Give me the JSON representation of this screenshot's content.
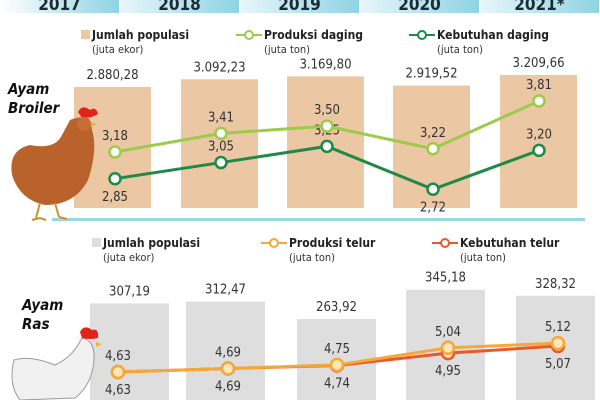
{
  "chart_data": [
    {
      "type": "bar+line",
      "section_label": "Ayam Broiler",
      "categories": [
        "2017",
        "2018",
        "2019",
        "2020",
        "2021*"
      ],
      "series": [
        {
          "name": "Jumlah populasi",
          "unit": "(juta ekor)",
          "kind": "bar",
          "color": "#ebc7a4",
          "values": [
            2880.28,
            3092.23,
            3169.8,
            2919.52,
            3209.66
          ],
          "labels": [
            "2.880,28",
            "3.092,23",
            "3.169,80",
            "2.919,52",
            "3.209,66"
          ]
        },
        {
          "name": "Produksi daging",
          "unit": "(juta ton)",
          "kind": "line",
          "color": "#9ccb4a",
          "values": [
            3.18,
            3.41,
            3.5,
            3.22,
            3.81
          ],
          "labels": [
            "3,18",
            "3,41",
            "3,50",
            "3,22",
            "3,81"
          ]
        },
        {
          "name": "Kebutuhan daging",
          "unit": "(juta ton)",
          "kind": "line",
          "color": "#1f8a47",
          "values": [
            2.85,
            3.05,
            3.25,
            2.72,
            3.2
          ],
          "labels": [
            "2,85",
            "3,05",
            "3,25",
            "2,72",
            "3,20"
          ]
        }
      ]
    },
    {
      "type": "bar+line",
      "section_label": "Ayam Ras",
      "categories": [
        "2017",
        "2018",
        "2019",
        "2020",
        "2021*"
      ],
      "series": [
        {
          "name": "Jumlah populasi",
          "unit": "(juta ekor)",
          "kind": "bar",
          "color": "#dedede",
          "values": [
            307.19,
            312.47,
            263.92,
            345.18,
            328.32
          ],
          "labels": [
            "307,19",
            "312,47",
            "263,92",
            "345,18",
            "328,32"
          ]
        },
        {
          "name": "Produksi telur",
          "unit": "(juta ton)",
          "kind": "line",
          "color": "#f5a83a",
          "values": [
            4.63,
            4.69,
            4.75,
            5.04,
            5.12
          ],
          "labels": [
            "4,63",
            "4,69",
            "4,75",
            "5,04",
            "5,12"
          ]
        },
        {
          "name": "Kebutuhan telur",
          "unit": "(juta ton)",
          "kind": "line",
          "color": "#e85a2c",
          "values": [
            4.63,
            4.69,
            4.74,
            4.95,
            5.07
          ],
          "labels": [
            "4,63",
            "4,69",
            "4,74",
            "4,95",
            "5,07"
          ]
        }
      ]
    }
  ]
}
